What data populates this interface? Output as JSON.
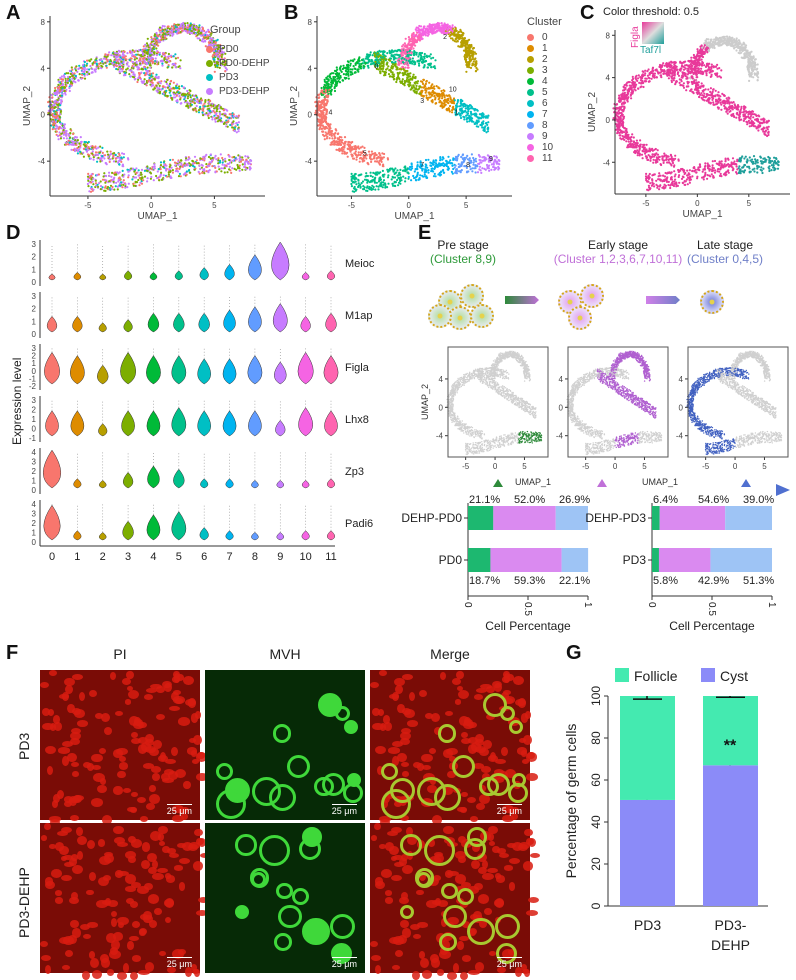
{
  "panels": {
    "A": "A",
    "B": "B",
    "C": "C",
    "D": "D",
    "E": "E",
    "F": "F",
    "G": "G"
  },
  "umap": {
    "xlabel": "UMAP_1",
    "ylabel": "UMAP_2",
    "xticks": [
      "-5",
      "0",
      "5"
    ],
    "yticks": [
      "8",
      "4",
      "0",
      "-4"
    ]
  },
  "panelA": {
    "legend_title": "Group",
    "groups": [
      {
        "name": "PD0",
        "color": "#F8766D"
      },
      {
        "name": "PD0-DEHP",
        "color": "#7CAE00"
      },
      {
        "name": "PD3",
        "color": "#00BFC4"
      },
      {
        "name": "PD3-DEHP",
        "color": "#C77CFF"
      }
    ]
  },
  "panelB": {
    "legend_title": "Cluster",
    "clusters": [
      "0",
      "1",
      "2",
      "3",
      "4",
      "5",
      "6",
      "7",
      "8",
      "9",
      "10",
      "11"
    ],
    "colors": [
      "#F8766D",
      "#DE8C00",
      "#B79F00",
      "#7CAE00",
      "#00BA38",
      "#00C08B",
      "#00BFC4",
      "#00B4F0",
      "#619CFF",
      "#C77CFF",
      "#F564E3",
      "#FF64B0"
    ]
  },
  "panelC": {
    "title": "Color threshold: 0.5",
    "gene1": "Figla",
    "gene2": "Taf7l",
    "color1": "#E8399A",
    "color2": "#1E9E9A"
  },
  "panelD": {
    "ylabel": "Expression level",
    "genes": [
      {
        "name": "Meioc",
        "yticks": [
          "3",
          "2",
          "1",
          "0"
        ]
      },
      {
        "name": "M1ap",
        "yticks": [
          "3",
          "2",
          "1",
          "0"
        ]
      },
      {
        "name": "Figla",
        "yticks": [
          "3",
          "2",
          "1",
          "0",
          "-1",
          "-2"
        ]
      },
      {
        "name": "Lhx8",
        "yticks": [
          "3",
          "2",
          "1",
          "0",
          "-1"
        ]
      },
      {
        "name": "Zp3",
        "yticks": [
          "4",
          "3",
          "2",
          "1",
          "0"
        ]
      },
      {
        "name": "Padi6",
        "yticks": [
          "4",
          "3",
          "2",
          "1",
          "0"
        ]
      }
    ],
    "xticks": [
      "0",
      "1",
      "2",
      "3",
      "4",
      "5",
      "6",
      "7",
      "8",
      "9",
      "10",
      "11"
    ]
  },
  "panelE": {
    "stages": [
      {
        "title": "Pre stage",
        "clusters": "(Cluster 8,9)",
        "color": "#2E9A3A"
      },
      {
        "title": "Early stage",
        "clusters": "(Cluster 1,2,3,6,7,10,11)",
        "color": "#C070D8"
      },
      {
        "title": "Late stage",
        "clusters": "(Cluster 0,4,5)",
        "color": "#6F7FC8"
      }
    ],
    "umap_xticks": [
      "-5",
      "0",
      "5"
    ],
    "umap_yticks": [
      "4",
      "0",
      "-4"
    ],
    "xlabel": "UMAP_1",
    "ylabel": "UMAP_2"
  },
  "panelF": {
    "columns": [
      "PI",
      "MVH",
      "Merge"
    ],
    "rows": [
      "PD3",
      "PD3-DEHP"
    ],
    "scale_bar": "25 μm"
  },
  "chart_data": [
    {
      "panel": "E-left",
      "type": "bar",
      "orientation": "horizontal",
      "stacked": true,
      "categories": [
        "DEHP-PD0",
        "PD0"
      ],
      "series": [
        {
          "values": [
            0.211,
            0.187
          ],
          "color": "#1DB870"
        },
        {
          "values": [
            0.52,
            0.593
          ],
          "color": "#DA8AF0"
        },
        {
          "values": [
            0.269,
            0.221
          ],
          "color": "#9EC4F5"
        }
      ],
      "labels": [
        [
          "21.1%",
          "52.0%",
          "26.9%"
        ],
        [
          "18.7%",
          "59.3%",
          "22.1%"
        ]
      ],
      "xticks": [
        "0",
        "0.5",
        "1"
      ],
      "xlabel": "Cell Percentage",
      "xlim": [
        0,
        1
      ]
    },
    {
      "panel": "E-right",
      "type": "bar",
      "orientation": "horizontal",
      "stacked": true,
      "categories": [
        "DEHP-PD3",
        "PD3"
      ],
      "series": [
        {
          "values": [
            0.064,
            0.058
          ],
          "color": "#1DB870"
        },
        {
          "values": [
            0.546,
            0.429
          ],
          "color": "#DA8AF0"
        },
        {
          "values": [
            0.39,
            0.513
          ],
          "color": "#9EC4F5"
        }
      ],
      "labels": [
        [
          "6.4%",
          "54.6%",
          "39.0%"
        ],
        [
          "5.8%",
          "42.9%",
          "51.3%"
        ]
      ],
      "xticks": [
        "0",
        "0.5",
        "1"
      ],
      "xlabel": "Cell Percentage",
      "xlim": [
        0,
        1
      ]
    },
    {
      "panel": "G",
      "type": "bar",
      "stacked": true,
      "categories": [
        "PD3",
        "PD3-DEHP"
      ],
      "series": [
        {
          "name": "Cyst",
          "values": [
            50.5,
            67
          ],
          "error": [
            2.5,
            1.5
          ],
          "color": "#8B8BF8"
        },
        {
          "name": "Follicle",
          "values": [
            49.5,
            33
          ],
          "error": [
            2.5,
            1
          ],
          "color": "#44EAB0"
        }
      ],
      "annotation": "**",
      "ylabel": "Percentage of germ cells",
      "yticks": [
        "0",
        "20",
        "40",
        "60",
        "80",
        "100"
      ],
      "ylim": [
        0,
        100
      ]
    }
  ]
}
